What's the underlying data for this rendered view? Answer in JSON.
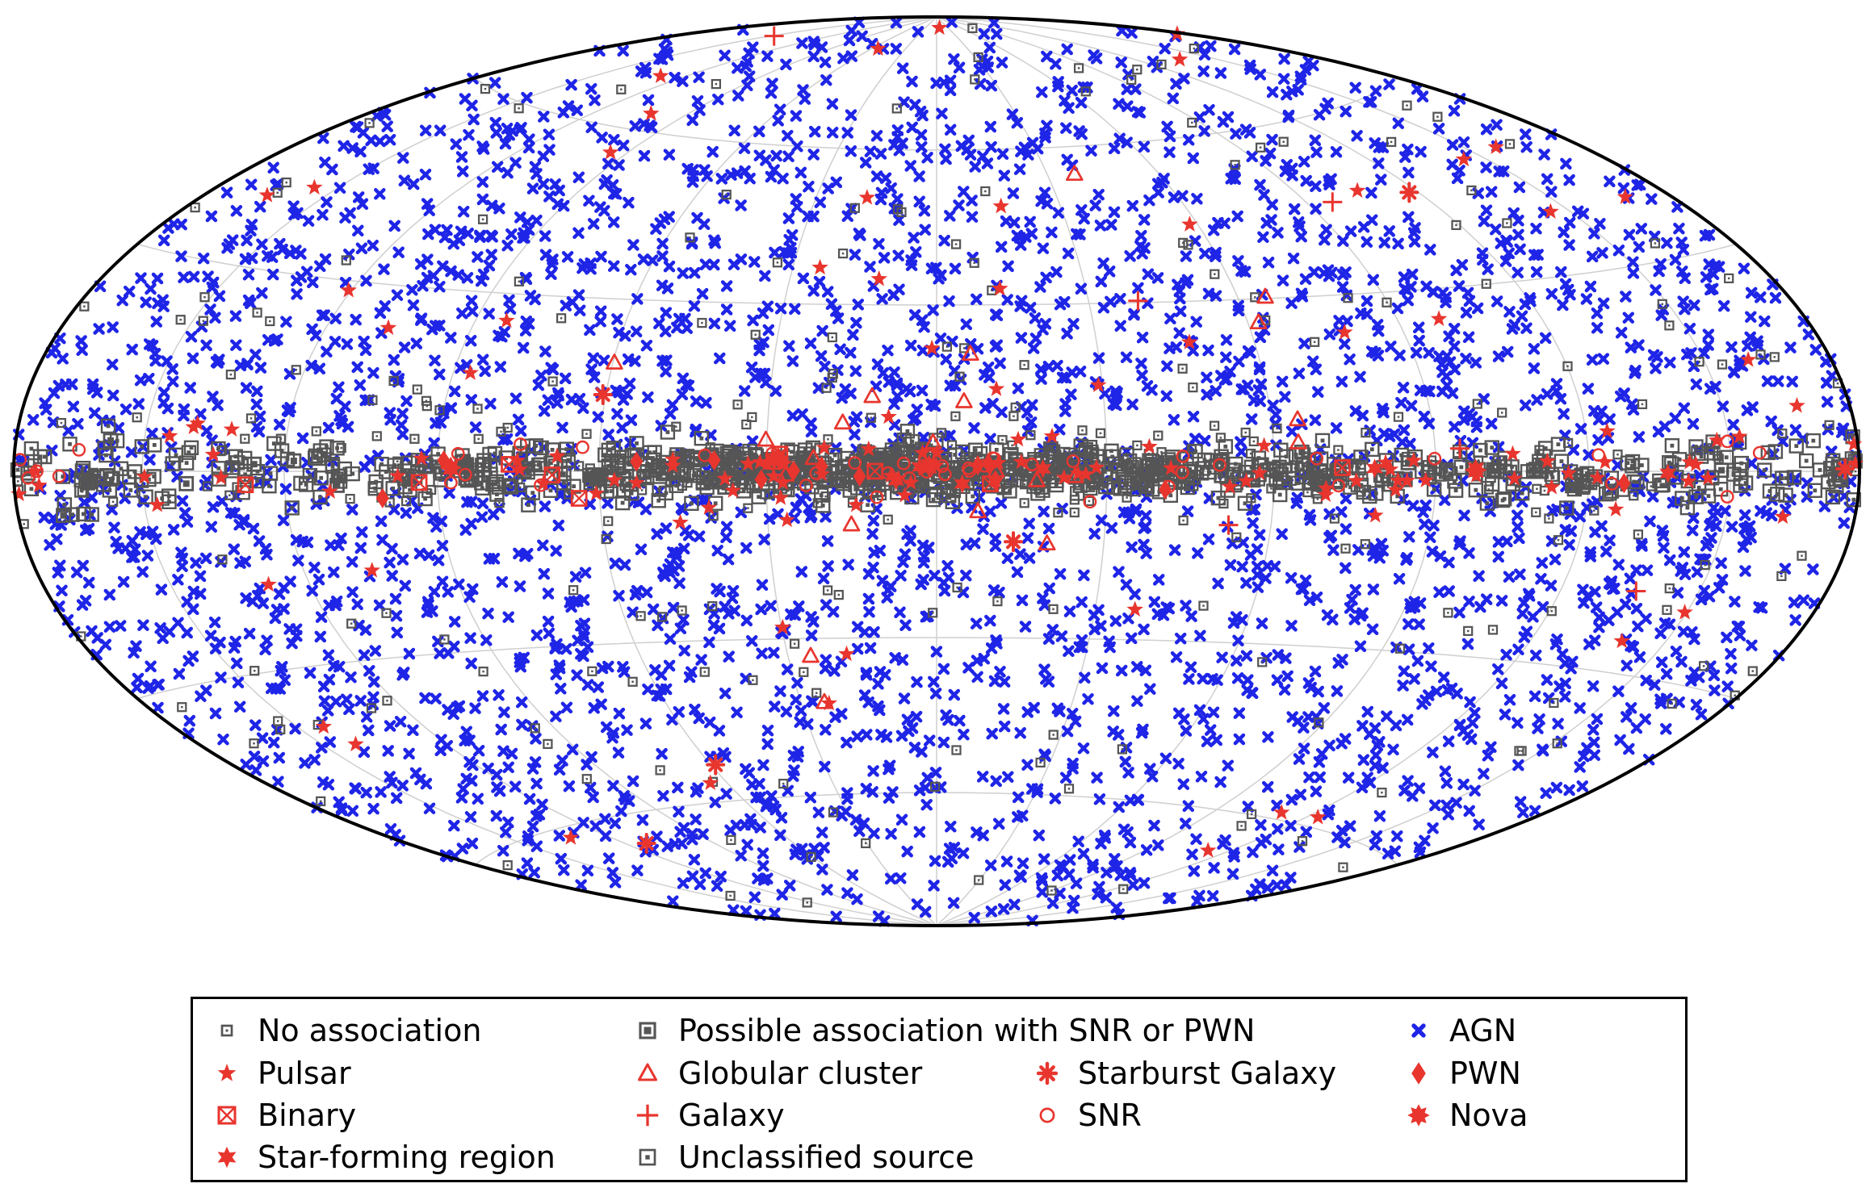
{
  "colors": {
    "red": "#e8352e",
    "blue": "#1f25e6",
    "gray": "#555555",
    "grid": "#cfcfcf",
    "outline": "#000000"
  },
  "chart_data": {
    "type": "scatter",
    "projection": "hammer-aitoff all-sky (galactic coordinates)",
    "title": "",
    "xlabel": "",
    "ylabel": "",
    "x_range_deg": [
      -180,
      180
    ],
    "y_range_deg": [
      -90,
      90
    ],
    "grid": true,
    "legend_position": "bottom",
    "legend_columns": 4,
    "series": [
      {
        "name": "No association",
        "marker": "square-dot",
        "color": "gray",
        "distribution": "isotropic+plane",
        "count": 380
      },
      {
        "name": "Pulsar",
        "marker": "star",
        "color": "red",
        "distribution": "plane+isotropic",
        "count": 140
      },
      {
        "name": "Binary",
        "marker": "square-x",
        "color": "red",
        "distribution": "plane",
        "count": 10
      },
      {
        "name": "Star-forming region",
        "marker": "star6",
        "color": "red",
        "distribution": "plane",
        "count": 6
      },
      {
        "name": "Possible association with SNR or PWN",
        "marker": "square-filled-dot",
        "color": "gray",
        "distribution": "plane",
        "count": 40
      },
      {
        "name": "Globular cluster",
        "marker": "triangle",
        "color": "red",
        "distribution": "inner",
        "count": 22
      },
      {
        "name": "Galaxy",
        "marker": "plus",
        "color": "red",
        "distribution": "isotropic",
        "count": 6
      },
      {
        "name": "Unclassified source",
        "marker": "square",
        "color": "gray",
        "distribution": "plane",
        "count": 900
      },
      {
        "name": "Starburst Galaxy",
        "marker": "asterisk-plus",
        "color": "red",
        "distribution": "isotropic",
        "count": 6
      },
      {
        "name": "SNR",
        "marker": "circle",
        "color": "red",
        "distribution": "plane",
        "count": 45
      },
      {
        "name": "AGN",
        "marker": "x",
        "color": "blue",
        "distribution": "isotropic",
        "count": 3200
      },
      {
        "name": "PWN",
        "marker": "diamond",
        "color": "red",
        "distribution": "plane",
        "count": 14
      },
      {
        "name": "Nova",
        "marker": "burst",
        "color": "red",
        "distribution": "plane",
        "count": 4
      }
    ]
  }
}
